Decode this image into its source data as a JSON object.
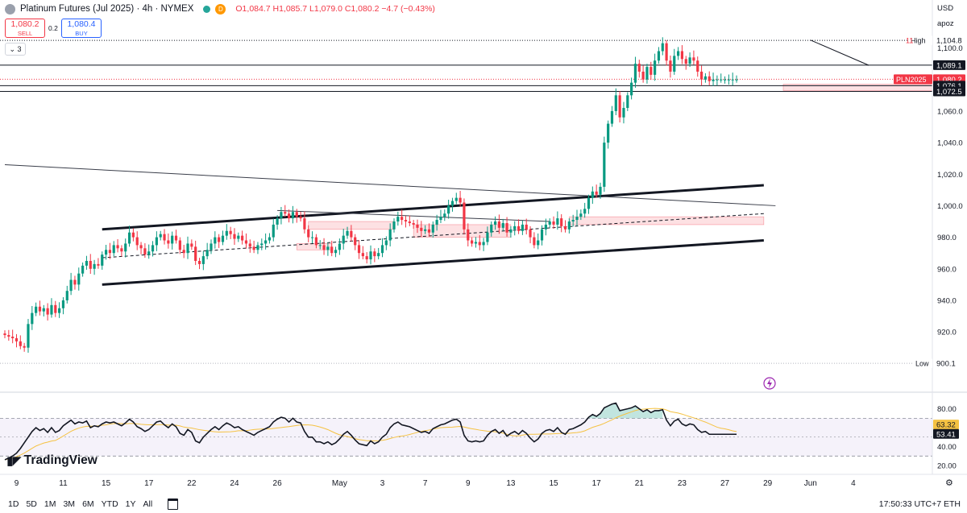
{
  "header": {
    "symbol": "Platinum Futures (Jul 2025) · 4h · NYMEX",
    "status_letter": "D",
    "ohlc": "O1,084.7 H1,085.7 L1,079.0 C1,080.2 −4.7 (−0.43%)"
  },
  "trade": {
    "sell_price": "1,080.2",
    "sell_label": "SELL",
    "spread": "0.2",
    "buy_price": "1,080.4",
    "buy_label": "BUY"
  },
  "indicator_count": "3",
  "price_axis": {
    "currency": "USD",
    "user": "apoz"
  },
  "logo_text": "TradingView",
  "bottom": {
    "timeframes": [
      "1D",
      "5D",
      "1M",
      "3M",
      "6M",
      "YTD",
      "1Y",
      "All"
    ],
    "clock": "17:50:33 UTC+7   ETH"
  },
  "chart_data": [
    {
      "type": "candlestick",
      "title": "Platinum Futures (Jul 2025)",
      "y_ticks": [
        920,
        940,
        960,
        980,
        1000,
        1020,
        1040,
        1060,
        1080,
        1100
      ],
      "ylim": [
        893,
        1110
      ],
      "x_ticks": [
        {
          "label": "9",
          "bar": 3
        },
        {
          "label": "11",
          "bar": 15
        },
        {
          "label": "15",
          "bar": 26
        },
        {
          "label": "17",
          "bar": 37
        },
        {
          "label": "22",
          "bar": 48
        },
        {
          "label": "24",
          "bar": 59
        },
        {
          "label": "26",
          "bar": 70
        },
        {
          "label": "May",
          "bar": 86
        },
        {
          "label": "3",
          "bar": 97
        },
        {
          "label": "7",
          "bar": 108
        },
        {
          "label": "9",
          "bar": 119
        },
        {
          "label": "13",
          "bar": 130
        },
        {
          "label": "15",
          "bar": 141
        },
        {
          "label": "17",
          "bar": 152
        },
        {
          "label": "21",
          "bar": 163
        },
        {
          "label": "23",
          "bar": 174
        },
        {
          "label": "27",
          "bar": 185
        },
        {
          "label": "29",
          "bar": 196
        },
        {
          "label": "Jun",
          "bar": 207
        },
        {
          "label": "4",
          "bar": 218
        }
      ],
      "bars_shown": 189,
      "closes": [
        918,
        917,
        916,
        914,
        911,
        910,
        925,
        932,
        936,
        933,
        935,
        931,
        937,
        932,
        935,
        940,
        946,
        953,
        950,
        957,
        962,
        965,
        960,
        963,
        962,
        969,
        972,
        970,
        975,
        973,
        971,
        976,
        983,
        980,
        975,
        973,
        969,
        971,
        975,
        980,
        982,
        978,
        976,
        981,
        978,
        972,
        970,
        976,
        974,
        965,
        963,
        968,
        972,
        976,
        980,
        977,
        981,
        984,
        982,
        979,
        981,
        978,
        976,
        974,
        972,
        975,
        976,
        978,
        980,
        988,
        992,
        996,
        995,
        992,
        996,
        993,
        992,
        985,
        980,
        980,
        975,
        975,
        972,
        974,
        970,
        972,
        976,
        981,
        984,
        980,
        975,
        970,
        968,
        966,
        971,
        968,
        970,
        975,
        978,
        985,
        990,
        993,
        991,
        990,
        989,
        988,
        986,
        984,
        985,
        983,
        988,
        991,
        993,
        995,
        1000,
        1003,
        1005,
        1002,
        985,
        978,
        976,
        977,
        975,
        977,
        983,
        988,
        990,
        986,
        989,
        983,
        985,
        987,
        984,
        988,
        985,
        980,
        975,
        978,
        985,
        988,
        990,
        988,
        992,
        987,
        985,
        990,
        991,
        993,
        995,
        998,
        1005,
        1009,
        1007,
        1012,
        1040,
        1052,
        1060,
        1070,
        1056,
        1062,
        1070,
        1078,
        1090,
        1085,
        1080,
        1088,
        1083,
        1092,
        1098,
        1103,
        1092,
        1085,
        1095,
        1098,
        1093,
        1090,
        1094,
        1092,
        1085,
        1080,
        1082,
        1079,
        1080,
        1080,
        1080,
        1080,
        1080,
        1080,
        1080
      ],
      "price_lines": [
        {
          "label": "High",
          "value": "1,104.8",
          "kind": "high"
        },
        {
          "label": "",
          "value": "1,089.1",
          "kind": "level"
        },
        {
          "label": "PLN2025",
          "value": "1,080.2",
          "kind": "last"
        },
        {
          "label": "",
          "value": "1,076.1",
          "kind": "level"
        },
        {
          "label": "",
          "value": "1,072.5",
          "kind": "level"
        },
        {
          "label": "Low",
          "value": "900.1",
          "kind": "low"
        }
      ],
      "high_count_marker": "11",
      "channel_upper": {
        "from": [
          25,
          985
        ],
        "to": [
          195,
          1013
        ]
      },
      "channel_lower": {
        "from": [
          25,
          950
        ],
        "to": [
          195,
          978
        ]
      },
      "long_trendline": {
        "from": [
          0,
          1026
        ],
        "to": [
          198,
          1000
        ]
      },
      "mid_trendline": {
        "from": [
          25,
          967
        ],
        "to": [
          195,
          995
        ]
      },
      "mini_trendline": {
        "from": [
          70,
          997
        ],
        "to": [
          140,
          990
        ]
      },
      "descending_trendline": {
        "from": [
          207,
          1105
        ],
        "to": [
          222,
          1089
        ]
      },
      "supply_zones": [
        {
          "bar_from": 78,
          "bar_to": 100,
          "low": 985,
          "high": 990
        },
        {
          "bar_from": 105,
          "bar_to": 130,
          "low": 980,
          "high": 988
        },
        {
          "bar_from": 145,
          "bar_to": 195,
          "low": 988,
          "high": 993
        },
        {
          "bar_from": 75,
          "bar_to": 84,
          "low": 972,
          "high": 976
        },
        {
          "bar_from": 200,
          "bar_to": 270,
          "low": 1073,
          "high": 1077
        }
      ]
    },
    {
      "type": "line",
      "title": "RSI",
      "y_ticks": [
        20,
        40,
        80
      ],
      "ylim": [
        14,
        95
      ],
      "band": [
        30,
        70
      ],
      "mid_level": 50,
      "values": [
        26,
        28,
        30,
        33,
        38,
        44,
        50,
        56,
        60,
        57,
        59,
        55,
        60,
        55,
        57,
        62,
        65,
        68,
        64,
        66,
        65,
        67,
        60,
        62,
        61,
        64,
        66,
        65,
        66,
        64,
        62,
        65,
        69,
        66,
        61,
        59,
        56,
        58,
        62,
        66,
        67,
        63,
        60,
        64,
        61,
        54,
        52,
        58,
        55,
        46,
        44,
        50,
        54,
        58,
        61,
        58,
        62,
        65,
        63,
        60,
        61,
        58,
        56,
        54,
        52,
        55,
        57,
        59,
        61,
        66,
        69,
        71,
        70,
        66,
        70,
        66,
        65,
        56,
        50,
        50,
        45,
        45,
        43,
        45,
        42,
        44,
        48,
        53,
        56,
        52,
        47,
        43,
        42,
        41,
        46,
        43,
        45,
        50,
        53,
        60,
        64,
        66,
        63,
        62,
        61,
        59,
        57,
        55,
        56,
        54,
        59,
        61,
        63,
        64,
        66,
        68,
        69,
        66,
        52,
        46,
        45,
        46,
        45,
        46,
        52,
        56,
        58,
        54,
        57,
        51,
        54,
        56,
        53,
        57,
        54,
        49,
        45,
        48,
        54,
        57,
        58,
        56,
        60,
        55,
        53,
        58,
        59,
        61,
        63,
        66,
        71,
        74,
        72,
        75,
        81,
        83,
        85,
        86,
        78,
        79,
        80,
        81,
        83,
        80,
        77,
        79,
        76,
        78,
        78,
        79,
        68,
        62,
        67,
        69,
        64,
        62,
        64,
        63,
        58,
        55,
        56,
        53,
        53,
        53,
        53,
        53,
        53,
        53,
        53
      ],
      "ma_label": "63.32",
      "rsi_label": "53.41"
    }
  ]
}
